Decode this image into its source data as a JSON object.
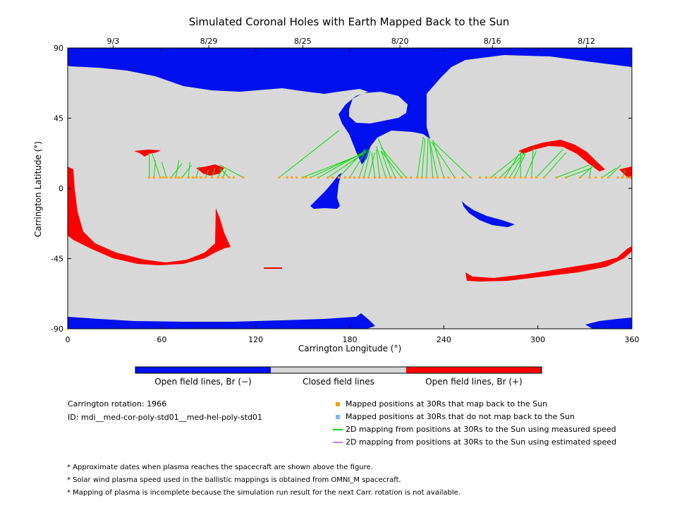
{
  "chart_data": {
    "type": "map",
    "title": "Simulated Coronal Holes with Earth Mapped Back to the Sun",
    "xlabel": "Carrington Longitude (°)",
    "ylabel": "Carrington Latitude (°)",
    "xlim": [
      0,
      360
    ],
    "ylim": [
      -90,
      90
    ],
    "x_ticks": [
      0,
      60,
      120,
      180,
      240,
      300,
      360
    ],
    "y_ticks": [
      90,
      45,
      0,
      -45,
      -90
    ],
    "y_tick_labels": [
      "90",
      "45",
      "0",
      "-45",
      "-90"
    ],
    "top_axis_dates": [
      {
        "label": "9/3",
        "lon": 29
      },
      {
        "label": "8/29",
        "lon": 90
      },
      {
        "label": "8/25",
        "lon": 150
      },
      {
        "label": "8/20",
        "lon": 212
      },
      {
        "label": "8/16",
        "lon": 271
      },
      {
        "label": "8/12",
        "lon": 331
      }
    ],
    "colorbar": [
      {
        "label": "Open field lines, Br (−)",
        "color": "#0010ee"
      },
      {
        "label": "Closed field lines",
        "color": "#d8d8d8"
      },
      {
        "label": "Open field lines, Br (+)",
        "color": "#ff0000"
      }
    ],
    "mapped_positions_lat": 7,
    "mapped_positions_lon": [
      52,
      55,
      59,
      61,
      63,
      66,
      69,
      71,
      73,
      77,
      80,
      82,
      85,
      88,
      92,
      96,
      99,
      103,
      106,
      112,
      135,
      140,
      143,
      146,
      150,
      152,
      155,
      160,
      166,
      169,
      173,
      177,
      180,
      183,
      186,
      189,
      192,
      196,
      199,
      203,
      206,
      209,
      213,
      216,
      219,
      223,
      226,
      229,
      233,
      236,
      240,
      243,
      247,
      252,
      257,
      263,
      267,
      270,
      273,
      276,
      279,
      282,
      285,
      289,
      292,
      296,
      299,
      304,
      312,
      318,
      327,
      333,
      337,
      341,
      345,
      351,
      354,
      357,
      359
    ],
    "field_line_footpoints": [
      {
        "from": 52,
        "to": [
          52,
          23
        ]
      },
      {
        "from": 55,
        "to": [
          56,
          18
        ]
      },
      {
        "from": 59,
        "to": [
          54,
          22
        ]
      },
      {
        "from": 63,
        "to": [
          60,
          17
        ]
      },
      {
        "from": 66,
        "to": [
          73,
          16
        ]
      },
      {
        "from": 69,
        "to": [
          71,
          18
        ]
      },
      {
        "from": 73,
        "to": [
          79,
          15
        ]
      },
      {
        "from": 77,
        "to": [
          78,
          17
        ]
      },
      {
        "from": 82,
        "to": [
          84,
          14
        ]
      },
      {
        "from": 88,
        "to": [
          90,
          12
        ]
      },
      {
        "from": 92,
        "to": [
          94,
          13
        ]
      },
      {
        "from": 96,
        "to": [
          98,
          12
        ]
      },
      {
        "from": 99,
        "to": [
          101,
          12
        ]
      },
      {
        "from": 103,
        "to": [
          97,
          13
        ]
      },
      {
        "from": 112,
        "to": [
          97,
          15
        ]
      },
      {
        "from": 135,
        "to": [
          173,
          37
        ]
      },
      {
        "from": 150,
        "to": [
          188,
          22
        ]
      },
      {
        "from": 155,
        "to": [
          189,
          23
        ]
      },
      {
        "from": 160,
        "to": [
          190,
          24
        ]
      },
      {
        "from": 166,
        "to": [
          190,
          23
        ]
      },
      {
        "from": 173,
        "to": [
          190,
          25
        ]
      },
      {
        "from": 180,
        "to": [
          191,
          25
        ]
      },
      {
        "from": 186,
        "to": [
          192,
          25
        ]
      },
      {
        "from": 189,
        "to": [
          193,
          24
        ]
      },
      {
        "from": 192,
        "to": [
          196,
          23
        ]
      },
      {
        "from": 196,
        "to": [
          194,
          23
        ]
      },
      {
        "from": 199,
        "to": [
          197,
          25
        ]
      },
      {
        "from": 203,
        "to": [
          197,
          27
        ]
      },
      {
        "from": 206,
        "to": [
          200,
          24
        ]
      },
      {
        "from": 209,
        "to": [
          198,
          32
        ]
      },
      {
        "from": 213,
        "to": [
          200,
          24
        ]
      },
      {
        "from": 216,
        "to": [
          200,
          26
        ]
      },
      {
        "from": 223,
        "to": [
          227,
          33
        ]
      },
      {
        "from": 226,
        "to": [
          228,
          32
        ]
      },
      {
        "from": 229,
        "to": [
          230,
          33
        ]
      },
      {
        "from": 233,
        "to": [
          231,
          31
        ]
      },
      {
        "from": 236,
        "to": [
          231,
          30
        ]
      },
      {
        "from": 240,
        "to": [
          233,
          31
        ]
      },
      {
        "from": 247,
        "to": [
          232,
          30
        ]
      },
      {
        "from": 257,
        "to": [
          233,
          30
        ]
      },
      {
        "from": 270,
        "to": [
          290,
          23
        ]
      },
      {
        "from": 276,
        "to": [
          292,
          23
        ]
      },
      {
        "from": 279,
        "to": [
          288,
          22
        ]
      },
      {
        "from": 282,
        "to": [
          290,
          20
        ]
      },
      {
        "from": 285,
        "to": [
          292,
          22
        ]
      },
      {
        "from": 289,
        "to": [
          289,
          25
        ]
      },
      {
        "from": 292,
        "to": [
          299,
          24
        ]
      },
      {
        "from": 296,
        "to": [
          297,
          26
        ]
      },
      {
        "from": 299,
        "to": [
          316,
          25
        ]
      },
      {
        "from": 304,
        "to": [
          318,
          23
        ]
      },
      {
        "from": 312,
        "to": [
          333,
          15
        ]
      },
      {
        "from": 318,
        "to": [
          334,
          13
        ]
      },
      {
        "from": 327,
        "to": [
          336,
          15
        ]
      },
      {
        "from": 333,
        "to": [
          334,
          14
        ]
      },
      {
        "from": 341,
        "to": [
          350,
          13
        ]
      },
      {
        "from": 345,
        "to": [
          353,
          15
        ]
      },
      {
        "from": 354,
        "to": [
          356,
          12
        ]
      }
    ],
    "legend": [
      {
        "label": "Mapped positions at 30Rs that map back to the Sun",
        "color": "#f5a400",
        "marker": "square"
      },
      {
        "label": "Mapped positions at 30Rs that do not map back to the Sun",
        "color": "#7ab8f0",
        "marker": "square"
      },
      {
        "label": "2D mapping from positions at 30Rs to the Sun using measured speed",
        "color": "#00e000",
        "marker": "line"
      },
      {
        "label": "2D mapping from positions at 30Rs to the Sun using estimated speed",
        "color": "#c080f0",
        "marker": "line"
      }
    ],
    "grid": false
  },
  "info": {
    "rotation": "Carrington rotation: 1966",
    "id": "ID: mdi__med-cor-poly-std01__med-hel-poly-std01"
  },
  "notes": [
    "* Approximate dates when plasma reaches the spacecraft are shown above the figure.",
    "* Solar wind plasma speed used in the ballistic mappings is obtained from OMNI_M spacecraft.",
    "* Mapping of plasma is incomplete because the simulation run result for the next Carr. rotation is not available."
  ],
  "colors": {
    "open_negative": "#0010ee",
    "closed": "#d8d8d8",
    "open_positive": "#ff0000",
    "mapped": "#f5a400",
    "unmapped": "#7ab8f0",
    "measured_line": "#00e000",
    "estimated_line": "#c080f0"
  }
}
